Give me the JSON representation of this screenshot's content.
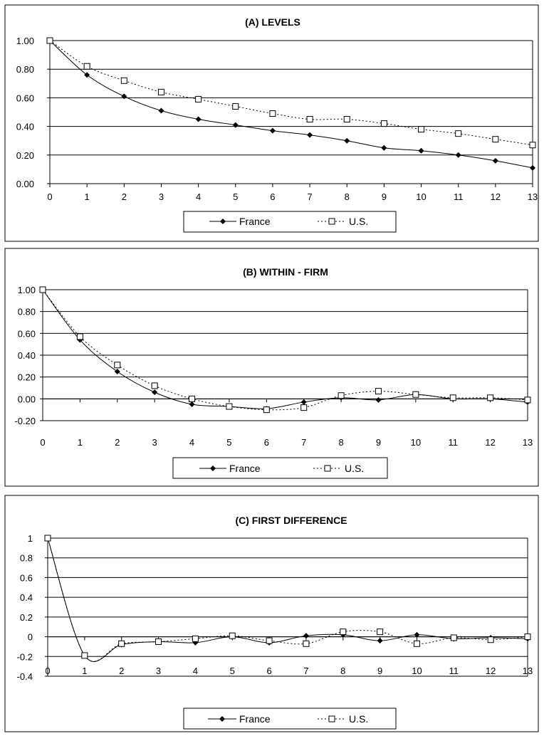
{
  "chart_data": [
    {
      "type": "line",
      "title": "(A) LEVELS",
      "x": [
        0,
        1,
        2,
        3,
        4,
        5,
        6,
        7,
        8,
        9,
        10,
        11,
        12,
        13
      ],
      "x_ticks": [
        "0",
        "1",
        "2",
        "3",
        "4",
        "5",
        "6",
        "7",
        "8",
        "9",
        "10",
        "11",
        "12",
        "13"
      ],
      "ylim": [
        0,
        1
      ],
      "y_ticks": [
        "0.00",
        "0.20",
        "0.40",
        "0.60",
        "0.80",
        "1.00"
      ],
      "grid": true,
      "legend_position": "bottom",
      "series": [
        {
          "name": "France",
          "marker": "filled-diamond",
          "line": "solid",
          "values": [
            1.0,
            0.76,
            0.61,
            0.51,
            0.45,
            0.41,
            0.37,
            0.34,
            0.3,
            0.25,
            0.23,
            0.2,
            0.16,
            0.11
          ]
        },
        {
          "name": "U.S.",
          "marker": "open-square",
          "line": "dotted",
          "values": [
            1.0,
            0.82,
            0.72,
            0.64,
            0.59,
            0.54,
            0.49,
            0.45,
            0.45,
            0.42,
            0.38,
            0.35,
            0.31,
            0.27
          ]
        }
      ]
    },
    {
      "type": "line",
      "title": "(B) WITHIN - FIRM",
      "x": [
        0,
        1,
        2,
        3,
        4,
        5,
        6,
        7,
        8,
        9,
        10,
        11,
        12,
        13
      ],
      "x_ticks": [
        "0",
        "1",
        "2",
        "3",
        "4",
        "5",
        "6",
        "7",
        "8",
        "9",
        "10",
        "11",
        "12",
        "13"
      ],
      "ylim": [
        -0.2,
        1
      ],
      "y_ticks": [
        "-0.20",
        "0.00",
        "0.20",
        "0.40",
        "0.60",
        "0.80",
        "1.00"
      ],
      "grid": true,
      "legend_position": "bottom",
      "series": [
        {
          "name": "France",
          "marker": "filled-diamond",
          "line": "solid",
          "values": [
            1.0,
            0.54,
            0.25,
            0.06,
            -0.05,
            -0.07,
            -0.09,
            -0.03,
            0.01,
            -0.01,
            0.04,
            0.0,
            0.0,
            -0.03
          ]
        },
        {
          "name": "U.S.",
          "marker": "open-square",
          "line": "dotted",
          "values": [
            1.0,
            0.57,
            0.31,
            0.12,
            0.0,
            -0.07,
            -0.1,
            -0.08,
            0.03,
            0.07,
            0.04,
            0.01,
            0.01,
            -0.01
          ]
        }
      ]
    },
    {
      "type": "line",
      "title": "(C) FIRST DIFFERENCE",
      "x": [
        0,
        1,
        2,
        3,
        4,
        5,
        6,
        7,
        8,
        9,
        10,
        11,
        12,
        13
      ],
      "x_ticks": [
        "0",
        "1",
        "2",
        "3",
        "4",
        "5",
        "6",
        "7",
        "8",
        "9",
        "10",
        "11",
        "12",
        "13"
      ],
      "ylim": [
        -0.4,
        1
      ],
      "y_ticks": [
        "-0.4",
        "-0.2",
        "0",
        "0.2",
        "0.4",
        "0.6",
        "0.8",
        "1"
      ],
      "grid": true,
      "legend_position": "bottom",
      "series": [
        {
          "name": "France",
          "marker": "filled-diamond",
          "line": "solid",
          "values": [
            1.0,
            -0.19,
            -0.08,
            -0.05,
            -0.06,
            0.0,
            -0.06,
            0.01,
            0.02,
            -0.04,
            0.02,
            -0.02,
            -0.01,
            -0.02
          ]
        },
        {
          "name": "U.S.",
          "marker": "open-square",
          "line": "dotted",
          "values": [
            1.0,
            -0.19,
            -0.07,
            -0.05,
            -0.02,
            0.01,
            -0.04,
            -0.07,
            0.05,
            0.05,
            -0.07,
            -0.01,
            -0.03,
            0.0
          ]
        }
      ]
    }
  ]
}
